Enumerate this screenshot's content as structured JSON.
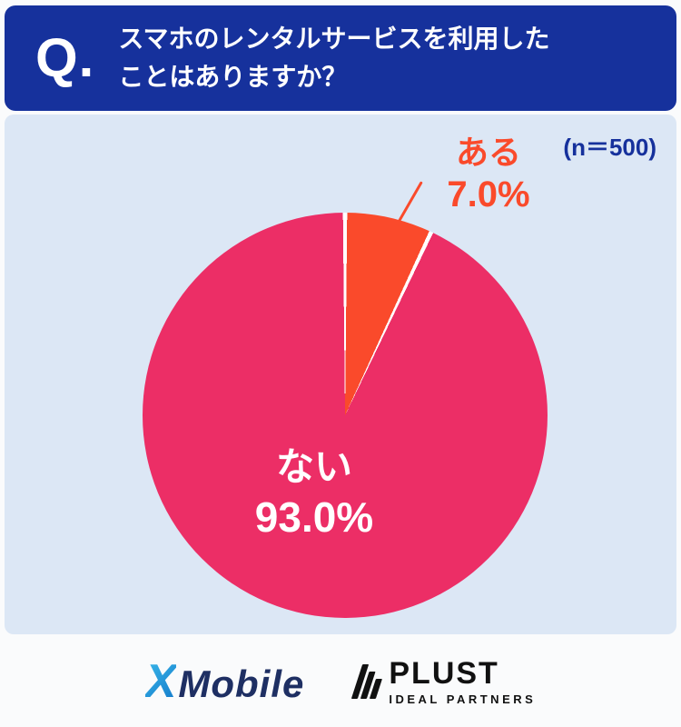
{
  "header": {
    "q_mark": "Q.",
    "question_line1": "スマホのレンタルサービスを利用した",
    "question_line2": "ことはありますか？"
  },
  "chart_data": {
    "type": "pie",
    "title": "スマホのレンタルサービスを利用したことはありますか？",
    "n_label": "(n＝500)",
    "sample_size": 500,
    "labels": [
      "ある",
      "ない"
    ],
    "values": [
      7.0,
      93.0
    ],
    "display_values": [
      "7.0%",
      "93.0%"
    ],
    "colors": [
      "#fa4a2b",
      "#ec2e66"
    ],
    "start_angle_deg": 0,
    "direction": "clockwise",
    "legend_position": "none"
  },
  "footer": {
    "xmobile_x": "X",
    "xmobile_text": "Mobile",
    "plust_name": "PLUST",
    "plust_sub": "IDEAL PARTNERS"
  },
  "colors": {
    "header_bg": "#16319c",
    "chart_area_bg": "#dce7f5",
    "accent_orange": "#fa4a2b",
    "accent_pink": "#ec2e66",
    "n_label_color": "#16319c"
  }
}
